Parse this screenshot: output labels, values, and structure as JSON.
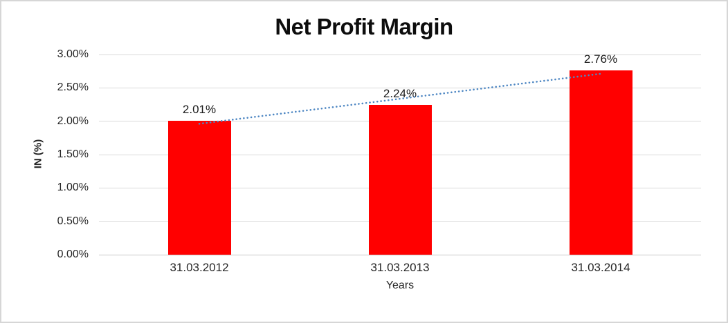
{
  "window": {
    "background": "#ffffff",
    "border_color": "#d6d6d6"
  },
  "chart_data": {
    "type": "bar",
    "title": "Net Profit Margin",
    "xlabel": "Years",
    "ylabel": "IN (%)",
    "categories": [
      "31.03.2012",
      "31.03.2013",
      "31.03.2014"
    ],
    "series": [
      {
        "name": "Net Profit Margin",
        "values": [
          2.01,
          2.24,
          2.76
        ],
        "labels": [
          "2.01%",
          "2.24%",
          "2.76%"
        ],
        "color": "#ff0000"
      }
    ],
    "y_ticks": [
      "3.00%",
      "2.50%",
      "2.00%",
      "1.50%",
      "1.00%",
      "0.50%",
      "0.00%"
    ],
    "ylim": [
      0,
      3
    ],
    "grid": true,
    "gridline_color": "#d9d9d9",
    "axisline_color": "#c6c6c6",
    "legend": "none",
    "trendline": {
      "type": "linear",
      "style": "dotted",
      "color": "#4e87c3"
    }
  }
}
